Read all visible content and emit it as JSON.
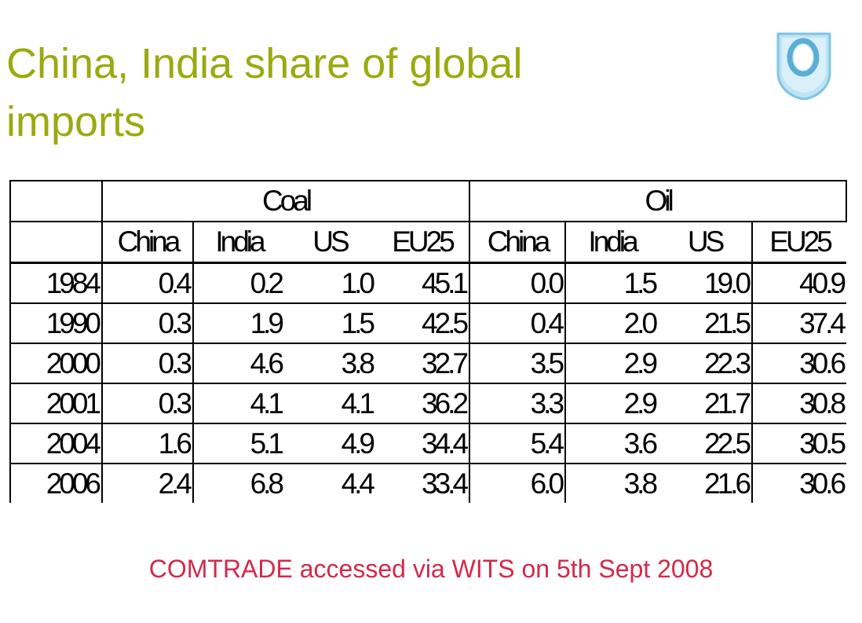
{
  "title_line1": "China, India share of global",
  "title_line2": "imports",
  "source": "COMTRADE accessed via WITS on 5th Sept 2008",
  "colors": {
    "title": "#9aaa10",
    "source": "#d6284a",
    "logo_fill": "#bfe3f3",
    "logo_stroke": "#7fc4e2"
  },
  "logo_icon": "university-shield-logo",
  "table": {
    "groups": [
      "Coal",
      "Oil"
    ],
    "columns": [
      "China",
      "India",
      "US",
      "EU25",
      "China",
      "India",
      "US",
      "EU25"
    ],
    "rows": [
      {
        "year": "1984",
        "values": [
          "0.4",
          "0.2",
          "1.0",
          "45.1",
          "0.0",
          "1.5",
          "19.0",
          "40.9"
        ]
      },
      {
        "year": "1990",
        "values": [
          "0.3",
          "1.9",
          "1.5",
          "42.5",
          "0.4",
          "2.0",
          "21.5",
          "37.4"
        ]
      },
      {
        "year": "2000",
        "values": [
          "0.3",
          "4.6",
          "3.8",
          "32.7",
          "3.5",
          "2.9",
          "22.3",
          "30.6"
        ]
      },
      {
        "year": "2001",
        "values": [
          "0.3",
          "4.1",
          "4.1",
          "36.2",
          "3.3",
          "2.9",
          "21.7",
          "30.8"
        ]
      },
      {
        "year": "2004",
        "values": [
          "1.6",
          "5.1",
          "4.9",
          "34.4",
          "5.4",
          "3.6",
          "22.5",
          "30.5"
        ]
      },
      {
        "year": "2006",
        "values": [
          "2.4",
          "6.8",
          "4.4",
          "33.4",
          "6.0",
          "3.8",
          "21.6",
          "30.6"
        ]
      }
    ]
  }
}
